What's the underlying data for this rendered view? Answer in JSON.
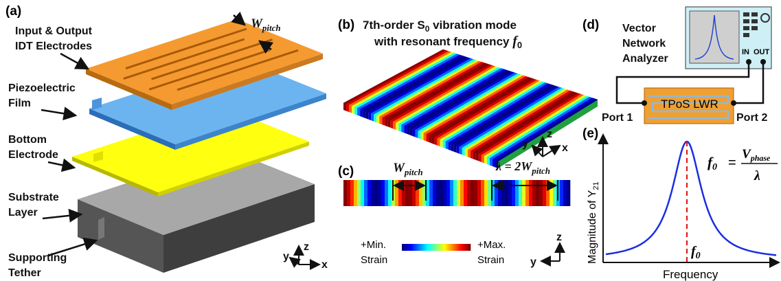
{
  "a": {
    "label": "(a)",
    "layers": [
      [
        "Input & Output",
        "IDT Electrodes"
      ],
      [
        "Piezoelectric",
        "Film"
      ],
      [
        "Bottom",
        "Electrode"
      ],
      [
        "Substrate",
        "Layer"
      ],
      [
        "Supporting",
        "Tether"
      ]
    ],
    "pitch": [
      "W",
      "pitch"
    ],
    "axes": [
      "y",
      "z",
      "x"
    ]
  },
  "b": {
    "label": "(b)",
    "title": [
      "7th-order S",
      "0",
      " vibration mode"
    ],
    "subtitle": [
      "with resonant frequency ",
      "f",
      "0"
    ],
    "axes": [
      "y",
      "z",
      "x"
    ]
  },
  "c": {
    "label": "(c)",
    "pitch": [
      "W",
      "pitch"
    ],
    "wavelength": [
      "λ = 2",
      "W",
      "pitch"
    ],
    "min": [
      "+Min.",
      "Strain"
    ],
    "max": [
      "+Max.",
      "Strain"
    ],
    "axes": [
      "z",
      "y"
    ]
  },
  "d": {
    "label": "(d)",
    "instrument": [
      "Vector",
      "Network",
      "Analyzer"
    ],
    "port_in": "IN",
    "port_out": "OUT",
    "device": "TPoS LWR",
    "port1": "Port 1",
    "port2": "Port 2"
  },
  "e": {
    "label": "(e)",
    "y_axis": [
      "Magnitude of Y",
      "21"
    ],
    "x_axis": "Frequency",
    "marker": [
      "f",
      "0"
    ],
    "formula": {
      "lhs": [
        "f",
        "0"
      ],
      "eq": "=",
      "num": [
        "V",
        "phase"
      ],
      "den": "λ"
    }
  }
}
